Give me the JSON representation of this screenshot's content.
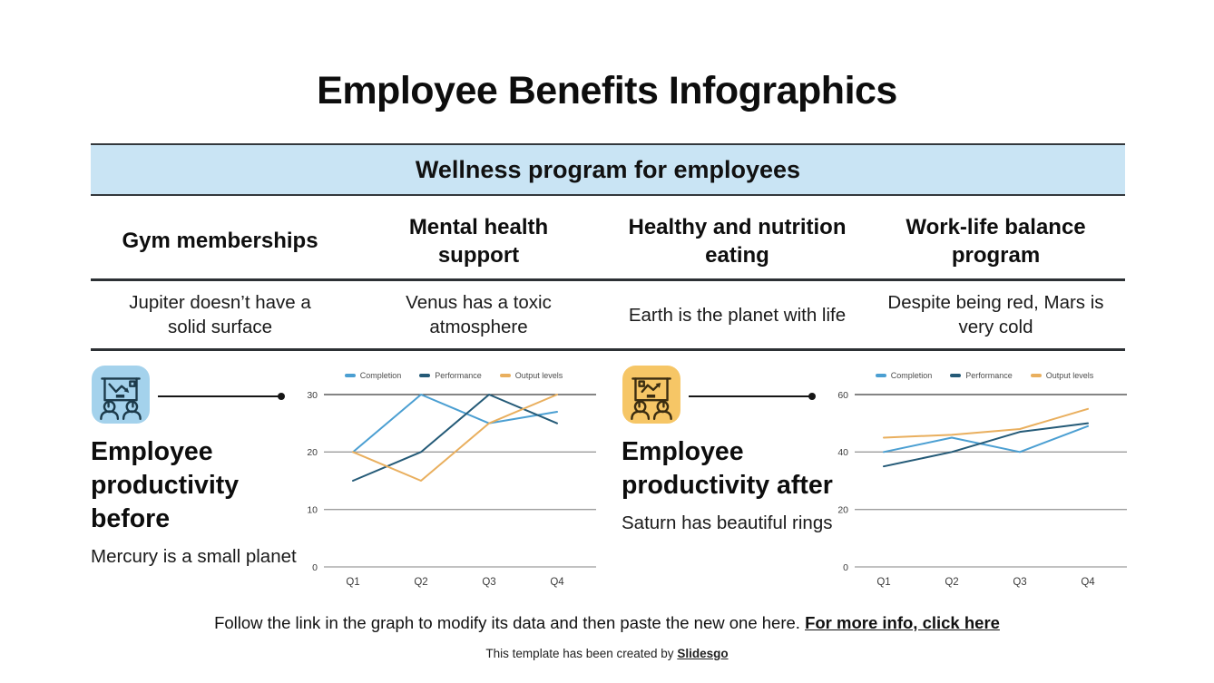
{
  "slide": {
    "title": "Employee Benefits Infographics"
  },
  "table": {
    "header": "Wellness program for employees",
    "columns": [
      {
        "heading": "Gym memberships",
        "description": "Jupiter doesn’t have a solid surface"
      },
      {
        "heading": "Mental health support",
        "description": "Venus has a toxic atmosphere"
      },
      {
        "heading": "Healthy and nutrition eating",
        "description": "Earth is the planet with life"
      },
      {
        "heading": "Work-life balance program",
        "description": "Despite being red, Mars is very cold"
      }
    ]
  },
  "sections": [
    {
      "title": "Employee productivity before",
      "subtitle": "Mercury is a small planet",
      "icon": "presentation-declining-chart-icon",
      "icon_bg": "#a4d2ec"
    },
    {
      "title": "Employee productivity after",
      "subtitle": "Saturn has beautiful rings",
      "icon": "presentation-rising-chart-icon",
      "icon_bg": "#f6c666"
    }
  ],
  "chart_data": [
    {
      "type": "line",
      "title": "Employee productivity before",
      "categories": [
        "Q1",
        "Q2",
        "Q3",
        "Q4"
      ],
      "series": [
        {
          "name": "Completion",
          "color": "#4b9fd2",
          "values": [
            20,
            30,
            25,
            27
          ]
        },
        {
          "name": "Performance",
          "color": "#245a77",
          "values": [
            15,
            20,
            30,
            25
          ]
        },
        {
          "name": "Output levels",
          "color": "#e9af5e",
          "values": [
            20,
            15,
            25,
            30
          ]
        }
      ],
      "ylim": [
        0,
        30
      ],
      "yticks": [
        0,
        10,
        20,
        30
      ],
      "xlabel": "",
      "ylabel": "",
      "legend_position": "top",
      "grid": true
    },
    {
      "type": "line",
      "title": "Employee productivity after",
      "categories": [
        "Q1",
        "Q2",
        "Q3",
        "Q4"
      ],
      "series": [
        {
          "name": "Completion",
          "color": "#4b9fd2",
          "values": [
            40,
            45,
            40,
            49
          ]
        },
        {
          "name": "Performance",
          "color": "#245a77",
          "values": [
            35,
            40,
            47,
            50
          ]
        },
        {
          "name": "Output levels",
          "color": "#e9af5e",
          "values": [
            45,
            46,
            48,
            55
          ]
        }
      ],
      "ylim": [
        0,
        60
      ],
      "yticks": [
        0,
        20,
        40,
        60
      ],
      "xlabel": "",
      "ylabel": "",
      "legend_position": "top",
      "grid": true
    }
  ],
  "footer": {
    "note": "Follow the link in the graph to modify its data and then paste the new one here.",
    "link_label": "For more info, click here",
    "credit_prefix": "This template has been created by",
    "credit_link_label": "Slidesgo"
  },
  "colors": {
    "band_bg": "#c9e4f4",
    "grid_major": "#3a3a3a",
    "grid_minor": "#9c9c9c",
    "series_completion": "#4b9fd2",
    "series_performance": "#245a77",
    "series_output": "#e9af5e"
  }
}
